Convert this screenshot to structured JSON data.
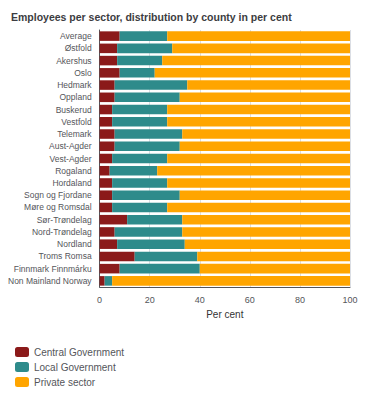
{
  "chart_data": {
    "type": "bar",
    "orientation": "horizontal",
    "stacked": true,
    "title": "Employees per sector, distribution by county in per cent",
    "xlabel": "Per cent",
    "categories": [
      "Average",
      "Østfold",
      "Akershus",
      "Oslo",
      "Hedmark",
      "Oppland",
      "Buskerud",
      "Vestfold",
      "Telemark",
      "Aust-Agder",
      "Vest-Agder",
      "Rogaland",
      "Hordaland",
      "Sogn og Fjordane",
      "Møre og Romsdal",
      "Sør-Trøndelag",
      "Nord-Trøndelag",
      "Nordland",
      "Troms Romsa",
      "Finnmark Finnmárku",
      "Non Mainland Norway"
    ],
    "series": [
      {
        "name": "Central Government",
        "color": "#8B1A1A",
        "values": [
          8,
          7,
          7,
          8,
          6,
          6,
          5,
          5,
          6,
          6,
          5,
          4,
          5,
          5,
          5,
          11,
          6,
          7,
          14,
          8,
          2
        ]
      },
      {
        "name": "Local Government",
        "color": "#2E8B8B",
        "values": [
          19,
          22,
          18,
          14,
          29,
          26,
          22,
          22,
          27,
          26,
          22,
          19,
          22,
          27,
          22,
          22,
          27,
          27,
          25,
          32,
          3
        ]
      },
      {
        "name": "Private sector",
        "color": "#FFA500",
        "values": [
          73,
          71,
          75,
          78,
          65,
          68,
          73,
          73,
          67,
          68,
          73,
          77,
          73,
          68,
          73,
          67,
          67,
          66,
          61,
          60,
          95
        ]
      }
    ],
    "xlim": [
      0,
      100
    ],
    "xticks": [
      0,
      20,
      40,
      60,
      80,
      100
    ],
    "grid": true,
    "legend": "lower left"
  }
}
